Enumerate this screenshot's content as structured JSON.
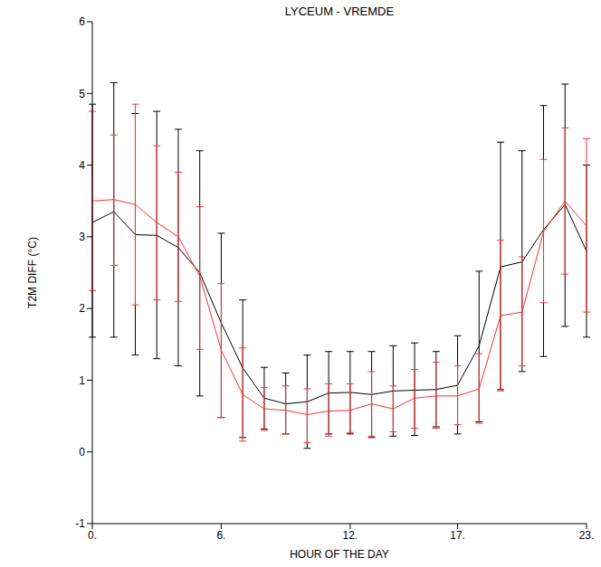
{
  "chart_data": {
    "type": "line",
    "title": "LYCEUM - VREMDE",
    "x_label": "HOUR OF THE DAY",
    "y_label": "T2M DIFF (°C)",
    "x": [
      0,
      1,
      2,
      3,
      4,
      5,
      6,
      7,
      8,
      9,
      10,
      11,
      12,
      13,
      14,
      15,
      16,
      17,
      18,
      19,
      20,
      21,
      22,
      23
    ],
    "xlim": [
      0,
      23
    ],
    "xticks": [
      {
        "value": 0,
        "label": "0."
      },
      {
        "value": 6,
        "label": "6."
      },
      {
        "value": 12,
        "label": "12."
      },
      {
        "value": 17,
        "label": "17."
      },
      {
        "value": 23,
        "label": "23."
      }
    ],
    "ylim": [
      -1,
      6
    ],
    "yticks": [
      -1,
      0,
      1,
      2,
      3,
      4,
      5,
      6
    ],
    "grid": false,
    "series": [
      {
        "color": "#000000",
        "values": [
          3.2,
          3.35,
          3.03,
          3.02,
          2.85,
          2.5,
          1.8,
          1.17,
          0.75,
          0.67,
          0.7,
          0.82,
          0.83,
          0.8,
          0.85,
          0.86,
          0.87,
          0.93,
          1.48,
          2.58,
          2.65,
          3.1,
          3.45,
          2.8
        ],
        "lower": [
          1.6,
          1.6,
          1.35,
          1.3,
          1.2,
          0.78,
          0.48,
          0.2,
          0.32,
          0.25,
          0.05,
          0.25,
          0.25,
          0.2,
          0.22,
          0.23,
          0.35,
          0.25,
          0.42,
          0.87,
          1.12,
          1.33,
          1.75,
          1.6
        ],
        "upper": [
          4.85,
          5.15,
          4.72,
          4.75,
          4.5,
          4.2,
          3.05,
          2.12,
          1.18,
          1.1,
          1.35,
          1.4,
          1.4,
          1.4,
          1.48,
          1.52,
          1.4,
          1.62,
          2.52,
          4.32,
          4.2,
          4.83,
          5.13,
          4.0
        ]
      },
      {
        "color": "#ff3030",
        "values": [
          3.5,
          3.52,
          3.45,
          3.2,
          3.0,
          2.45,
          1.42,
          0.8,
          0.6,
          0.58,
          0.52,
          0.57,
          0.58,
          0.67,
          0.6,
          0.75,
          0.78,
          0.78,
          0.88,
          1.9,
          1.95,
          3.07,
          3.5,
          3.15
        ],
        "lower": [
          2.25,
          2.6,
          2.05,
          2.12,
          2.1,
          1.43,
          0.48,
          0.15,
          0.3,
          0.25,
          0.13,
          0.22,
          0.27,
          0.22,
          0.28,
          0.33,
          0.33,
          0.38,
          0.4,
          0.85,
          1.2,
          2.08,
          2.48,
          1.95
        ],
        "upper": [
          4.75,
          4.42,
          4.85,
          4.27,
          3.9,
          3.42,
          2.35,
          1.45,
          0.9,
          0.92,
          0.88,
          0.95,
          0.95,
          1.12,
          0.92,
          1.15,
          1.25,
          1.2,
          1.37,
          2.95,
          2.72,
          4.08,
          4.52,
          4.37
        ]
      }
    ]
  }
}
